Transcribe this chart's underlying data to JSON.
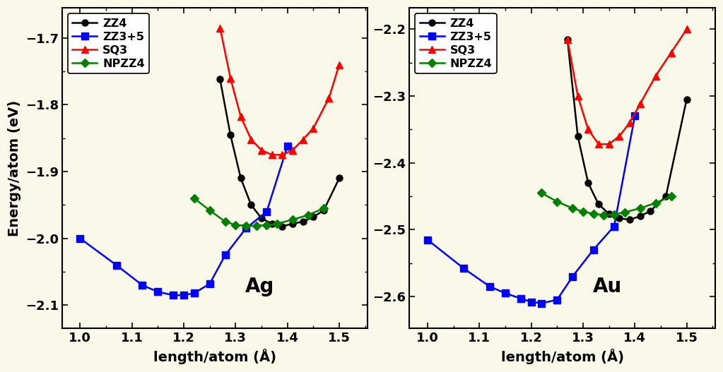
{
  "bg_color": "#FAF8E8",
  "Ag": {
    "ZZ4": {
      "x": [
        1.27,
        1.29,
        1.31,
        1.33,
        1.35,
        1.37,
        1.39,
        1.41,
        1.43,
        1.45,
        1.47,
        1.5
      ],
      "y": [
        -1.762,
        -1.845,
        -1.91,
        -1.95,
        -1.97,
        -1.978,
        -1.982,
        -1.978,
        -1.975,
        -1.968,
        -1.958,
        -1.91
      ],
      "color": "#000000",
      "marker": "o",
      "label": "ZZ4"
    },
    "ZZ3p5": {
      "x": [
        1.0,
        1.07,
        1.12,
        1.15,
        1.18,
        1.2,
        1.22,
        1.25,
        1.28,
        1.32,
        1.36,
        1.4
      ],
      "y": [
        -2.0,
        -2.04,
        -2.07,
        -2.08,
        -2.085,
        -2.085,
        -2.082,
        -2.068,
        -2.025,
        -1.985,
        -1.96,
        -1.862
      ],
      "color": "#0000FF",
      "marker": "s",
      "label": "ZZ3+5"
    },
    "SQ3": {
      "x": [
        1.27,
        1.29,
        1.31,
        1.33,
        1.35,
        1.37,
        1.39,
        1.41,
        1.43,
        1.45,
        1.48,
        1.5
      ],
      "y": [
        -1.685,
        -1.76,
        -1.818,
        -1.852,
        -1.868,
        -1.875,
        -1.875,
        -1.868,
        -1.852,
        -1.835,
        -1.79,
        -1.74
      ],
      "color": "#FF0000",
      "marker": "^",
      "label": "SQ3"
    },
    "NPZZ4": {
      "x": [
        1.22,
        1.25,
        1.28,
        1.3,
        1.32,
        1.34,
        1.36,
        1.38,
        1.41,
        1.44,
        1.47
      ],
      "y": [
        -1.94,
        -1.958,
        -1.975,
        -1.98,
        -1.981,
        -1.981,
        -1.98,
        -1.978,
        -1.972,
        -1.965,
        -1.955
      ],
      "color": "#008000",
      "marker": "D",
      "label": "NPZZ4"
    }
  },
  "Au": {
    "ZZ4": {
      "x": [
        1.27,
        1.29,
        1.31,
        1.33,
        1.35,
        1.37,
        1.39,
        1.41,
        1.43,
        1.46,
        1.5
      ],
      "y": [
        -2.215,
        -2.36,
        -2.43,
        -2.462,
        -2.476,
        -2.483,
        -2.485,
        -2.48,
        -2.472,
        -2.45,
        -2.305
      ],
      "color": "#000000",
      "marker": "o",
      "label": "ZZ4"
    },
    "ZZ3p5": {
      "x": [
        1.0,
        1.07,
        1.12,
        1.15,
        1.18,
        1.2,
        1.22,
        1.25,
        1.28,
        1.32,
        1.36,
        1.4
      ],
      "y": [
        -2.515,
        -2.558,
        -2.585,
        -2.595,
        -2.603,
        -2.608,
        -2.61,
        -2.605,
        -2.57,
        -2.53,
        -2.495,
        -2.33
      ],
      "color": "#0000FF",
      "marker": "s",
      "label": "ZZ3+5"
    },
    "SQ3": {
      "x": [
        1.27,
        1.29,
        1.31,
        1.33,
        1.35,
        1.37,
        1.39,
        1.41,
        1.44,
        1.47,
        1.5
      ],
      "y": [
        -2.215,
        -2.3,
        -2.35,
        -2.372,
        -2.372,
        -2.36,
        -2.34,
        -2.312,
        -2.27,
        -2.235,
        -2.2
      ],
      "color": "#FF0000",
      "marker": "^",
      "label": "SQ3"
    },
    "NPZZ4": {
      "x": [
        1.22,
        1.25,
        1.28,
        1.3,
        1.32,
        1.34,
        1.36,
        1.38,
        1.41,
        1.44,
        1.47
      ],
      "y": [
        -2.445,
        -2.458,
        -2.468,
        -2.473,
        -2.476,
        -2.478,
        -2.477,
        -2.474,
        -2.468,
        -2.46,
        -2.45
      ],
      "color": "#008000",
      "marker": "D",
      "label": "NPZZ4"
    }
  },
  "Ag_ylim": [
    -2.135,
    -1.655
  ],
  "Au_ylim": [
    -2.648,
    -2.168
  ],
  "xlim": [
    0.965,
    1.555
  ],
  "xlabel": "length/atom (Å)",
  "ylabel": "Energy/atom (eV)",
  "Ag_yticks": [
    -2.1,
    -2.0,
    -1.9,
    -1.8,
    -1.7
  ],
  "Au_yticks": [
    -2.6,
    -2.5,
    -2.4,
    -2.3,
    -2.2
  ],
  "xticks": [
    1.0,
    1.1,
    1.2,
    1.3,
    1.4,
    1.5
  ],
  "linewidth": 1.8,
  "markersize": 6.5,
  "fontsize_label": 14,
  "fontsize_tick": 13,
  "fontsize_legend": 11.5,
  "fontsize_annotation": 20
}
